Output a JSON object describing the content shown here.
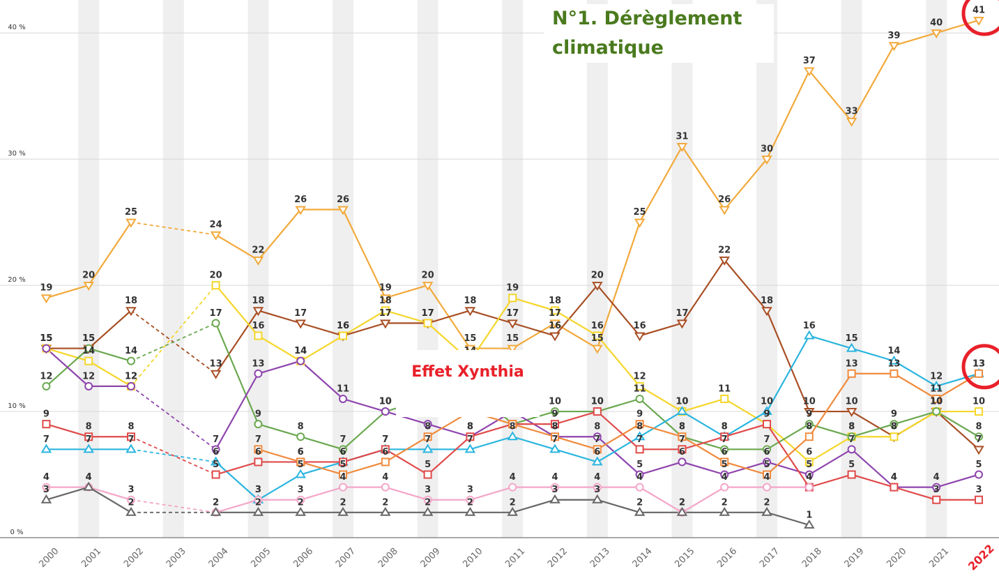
{
  "chart_data": {
    "type": "line",
    "categories": [
      "2000",
      "2001",
      "2002",
      "2003",
      "2004",
      "2005",
      "2006",
      "2007",
      "2008",
      "2009",
      "2010",
      "2011",
      "2012",
      "2013",
      "2014",
      "2015",
      "2016",
      "2017",
      "2018",
      "2019",
      "2020",
      "2021",
      "2022"
    ],
    "ylim": [
      0,
      42
    ],
    "yticks": [
      {
        "value": 0,
        "label": "0 %"
      },
      {
        "value": 10,
        "label": "10 %"
      },
      {
        "value": 20,
        "label": "20 %"
      },
      {
        "value": 30,
        "label": "30 %"
      },
      {
        "value": 40,
        "label": "40 %"
      }
    ],
    "grid": true,
    "series": [
      {
        "color": "#f2a93b",
        "marker": "triangle-down",
        "values": [
          19,
          20,
          25,
          null,
          24,
          22,
          26,
          26,
          19,
          20,
          15,
          15,
          17,
          15,
          25,
          31,
          26,
          30,
          37,
          33,
          39,
          40,
          41
        ]
      },
      {
        "color": "#a84e24",
        "marker": "triangle-down",
        "values": [
          15,
          15,
          18,
          null,
          13,
          18,
          17,
          16,
          17,
          17,
          18,
          17,
          16,
          20,
          16,
          17,
          22,
          18,
          10,
          10,
          8,
          10,
          7
        ]
      },
      {
        "color": "#f5d62a",
        "marker": "square",
        "values": [
          15,
          14,
          12,
          null,
          20,
          16,
          14,
          16,
          18,
          17,
          14,
          19,
          18,
          16,
          12,
          10,
          11,
          9,
          6,
          8,
          8,
          10,
          10
        ]
      },
      {
        "color": "#6aa84f",
        "marker": "circle",
        "values": [
          12,
          15,
          14,
          null,
          17,
          9,
          8,
          7,
          10,
          11,
          12,
          9,
          10,
          10,
          11,
          8,
          7,
          7,
          9,
          8,
          9,
          10,
          8
        ]
      },
      {
        "color": "#8e44ad",
        "marker": "circle",
        "values": [
          15,
          12,
          12,
          null,
          7,
          13,
          14,
          11,
          10,
          9,
          8,
          10,
          8,
          8,
          5,
          6,
          5,
          6,
          5,
          7,
          4,
          4,
          5
        ]
      },
      {
        "color": "#2bb5df",
        "marker": "triangle-up",
        "values": [
          7,
          7,
          7,
          null,
          6,
          3,
          5,
          6,
          7,
          7,
          7,
          8,
          7,
          6,
          8,
          10,
          8,
          10,
          16,
          15,
          14,
          12,
          13
        ]
      },
      {
        "color": "#e04a4a",
        "marker": "square",
        "values": [
          9,
          8,
          8,
          null,
          5,
          6,
          6,
          6,
          7,
          5,
          8,
          9,
          9,
          10,
          7,
          7,
          8,
          9,
          4,
          5,
          4,
          3,
          3
        ]
      },
      {
        "color": "#f08a3c",
        "marker": "square",
        "values": [
          null,
          null,
          null,
          null,
          null,
          7,
          6,
          5,
          6,
          8,
          10,
          9,
          8,
          7,
          9,
          8,
          6,
          5,
          8,
          13,
          13,
          11,
          13
        ]
      },
      {
        "color": "#f4a6c8",
        "marker": "circle",
        "values": [
          4,
          4,
          3,
          null,
          2,
          3,
          3,
          4,
          4,
          3,
          3,
          4,
          4,
          4,
          4,
          2,
          4,
          4,
          4,
          null,
          null,
          null,
          null
        ]
      },
      {
        "color": "#666666",
        "marker": "triangle-up",
        "values": [
          3,
          4,
          2,
          null,
          2,
          2,
          2,
          2,
          2,
          2,
          2,
          2,
          3,
          3,
          2,
          2,
          2,
          2,
          1,
          null,
          null,
          null,
          null
        ]
      }
    ],
    "annotations": [
      {
        "text": "N°1. Dérèglement climatique",
        "color": "#4a7a1e"
      },
      {
        "text": "Effet Xynthia",
        "color": "#e8202a"
      }
    ],
    "highlight_color": "#e8202a"
  }
}
